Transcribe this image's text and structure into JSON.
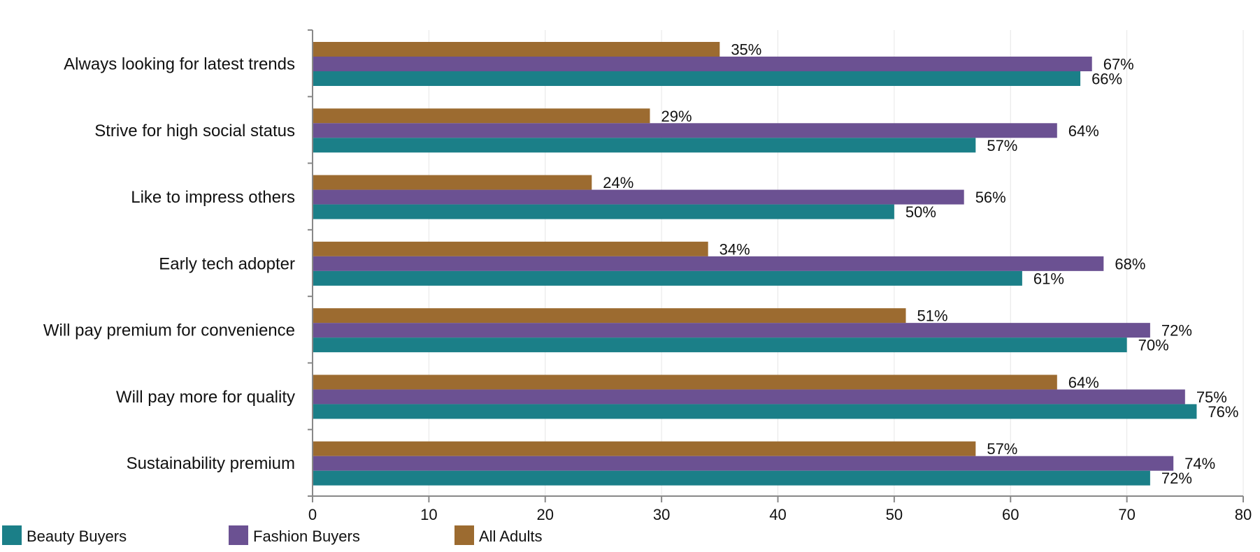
{
  "chart_data": {
    "type": "bar",
    "orientation": "horizontal",
    "title": "",
    "xlabel": "",
    "ylabel": "",
    "xlim": [
      0,
      80
    ],
    "x_ticks": [
      0,
      10,
      20,
      30,
      40,
      50,
      60,
      70,
      80
    ],
    "grid": true,
    "legend_position": "bottom-left",
    "value_suffix": "%",
    "categories": [
      "Always looking for latest trends",
      "Strive for high social status",
      "Like to impress others",
      "Early tech adopter",
      "Will pay premium for convenience",
      "Will pay more for quality",
      "Sustainability premium"
    ],
    "series": [
      {
        "name": "All Adults",
        "color": "#9c6b30",
        "values": [
          35,
          29,
          24,
          34,
          51,
          64,
          57
        ]
      },
      {
        "name": "Fashion Buyers",
        "color": "#6b5192",
        "values": [
          67,
          64,
          56,
          68,
          72,
          75,
          74
        ]
      },
      {
        "name": "Beauty Buyers",
        "color": "#1b7f88",
        "values": [
          66,
          57,
          50,
          61,
          70,
          76,
          72
        ]
      }
    ],
    "legend": [
      {
        "name": "Beauty Buyers",
        "color": "#1b7f88"
      },
      {
        "name": "Fashion Buyers",
        "color": "#6b5192"
      },
      {
        "name": "All Adults",
        "color": "#9c6b30"
      }
    ]
  }
}
